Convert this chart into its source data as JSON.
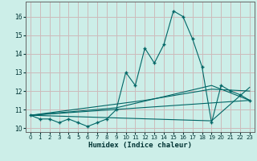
{
  "xlabel": "Humidex (Indice chaleur)",
  "bg_color": "#cceee8",
  "grid_color": "#ccbbbb",
  "line_color": "#006666",
  "xlim": [
    -0.5,
    23.5
  ],
  "ylim": [
    9.8,
    16.8
  ],
  "yticks": [
    10,
    11,
    12,
    13,
    14,
    15,
    16
  ],
  "xticks": [
    0,
    1,
    2,
    3,
    4,
    5,
    6,
    7,
    8,
    9,
    10,
    11,
    12,
    13,
    14,
    15,
    16,
    17,
    18,
    19,
    20,
    21,
    22,
    23
  ],
  "series": [
    [
      0,
      10.7
    ],
    [
      1,
      10.5
    ],
    [
      2,
      10.5
    ],
    [
      3,
      10.3
    ],
    [
      4,
      10.5
    ],
    [
      5,
      10.3
    ],
    [
      6,
      10.1
    ],
    [
      7,
      10.3
    ],
    [
      8,
      10.5
    ],
    [
      9,
      11.0
    ],
    [
      10,
      13.0
    ],
    [
      11,
      12.3
    ],
    [
      12,
      14.3
    ],
    [
      13,
      13.5
    ],
    [
      14,
      14.5
    ],
    [
      15,
      16.3
    ],
    [
      16,
      16.0
    ],
    [
      17,
      14.8
    ],
    [
      18,
      13.3
    ],
    [
      19,
      10.3
    ],
    [
      20,
      12.3
    ],
    [
      21,
      12.0
    ],
    [
      22,
      11.8
    ],
    [
      23,
      11.5
    ]
  ],
  "straight_lines": [
    [
      [
        0,
        10.7
      ],
      [
        23,
        11.5
      ]
    ],
    [
      [
        0,
        10.7
      ],
      [
        19,
        10.4
      ],
      [
        23,
        12.2
      ]
    ],
    [
      [
        0,
        10.7
      ],
      [
        12,
        11.5
      ],
      [
        19,
        12.1
      ],
      [
        23,
        12.0
      ]
    ],
    [
      [
        0,
        10.7
      ],
      [
        9,
        11.1
      ],
      [
        19,
        12.3
      ],
      [
        23,
        11.5
      ]
    ]
  ]
}
